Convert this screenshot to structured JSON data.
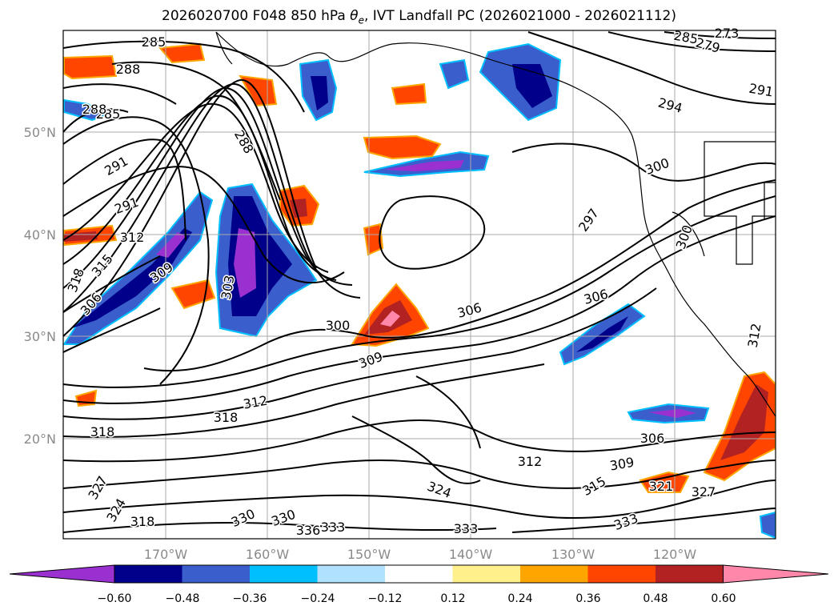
{
  "title": "2026020700 F048 850 hPa θe, IVT Landfall PC (2026021000 - 2026021112)",
  "map": {
    "lat_ticks": [
      "50°N",
      "40°N",
      "30°N",
      "20°N"
    ],
    "lon_ticks": [
      "170°W",
      "160°W",
      "150°W",
      "140°W",
      "130°W",
      "120°W"
    ],
    "contour_labels": [
      "285",
      "288",
      "285",
      "291",
      "291",
      "288",
      "312",
      "315",
      "318",
      "306",
      "309",
      "303",
      "300",
      "306",
      "306",
      "309",
      "312",
      "318",
      "312",
      "306",
      "309",
      "315",
      "321",
      "327",
      "324",
      "330",
      "330",
      "336",
      "333",
      "333",
      "333",
      "294",
      "297",
      "300",
      "288",
      "285",
      "279",
      "273",
      "291",
      "327",
      "324",
      "318",
      "312",
      "318",
      "300"
    ]
  },
  "colorbar": {
    "ticks": [
      "−0.60",
      "−0.48",
      "−0.36",
      "−0.24",
      "−0.12",
      "0.12",
      "0.24",
      "0.36",
      "0.48",
      "0.60"
    ],
    "colors": [
      "#9b30d0",
      "#00008b",
      "#3a5fcd",
      "#00bfff",
      "#b0e2ff",
      "#ffffff",
      "#fff08c",
      "#ffa500",
      "#ff4500",
      "#b22222",
      "#ff88aa"
    ]
  }
}
